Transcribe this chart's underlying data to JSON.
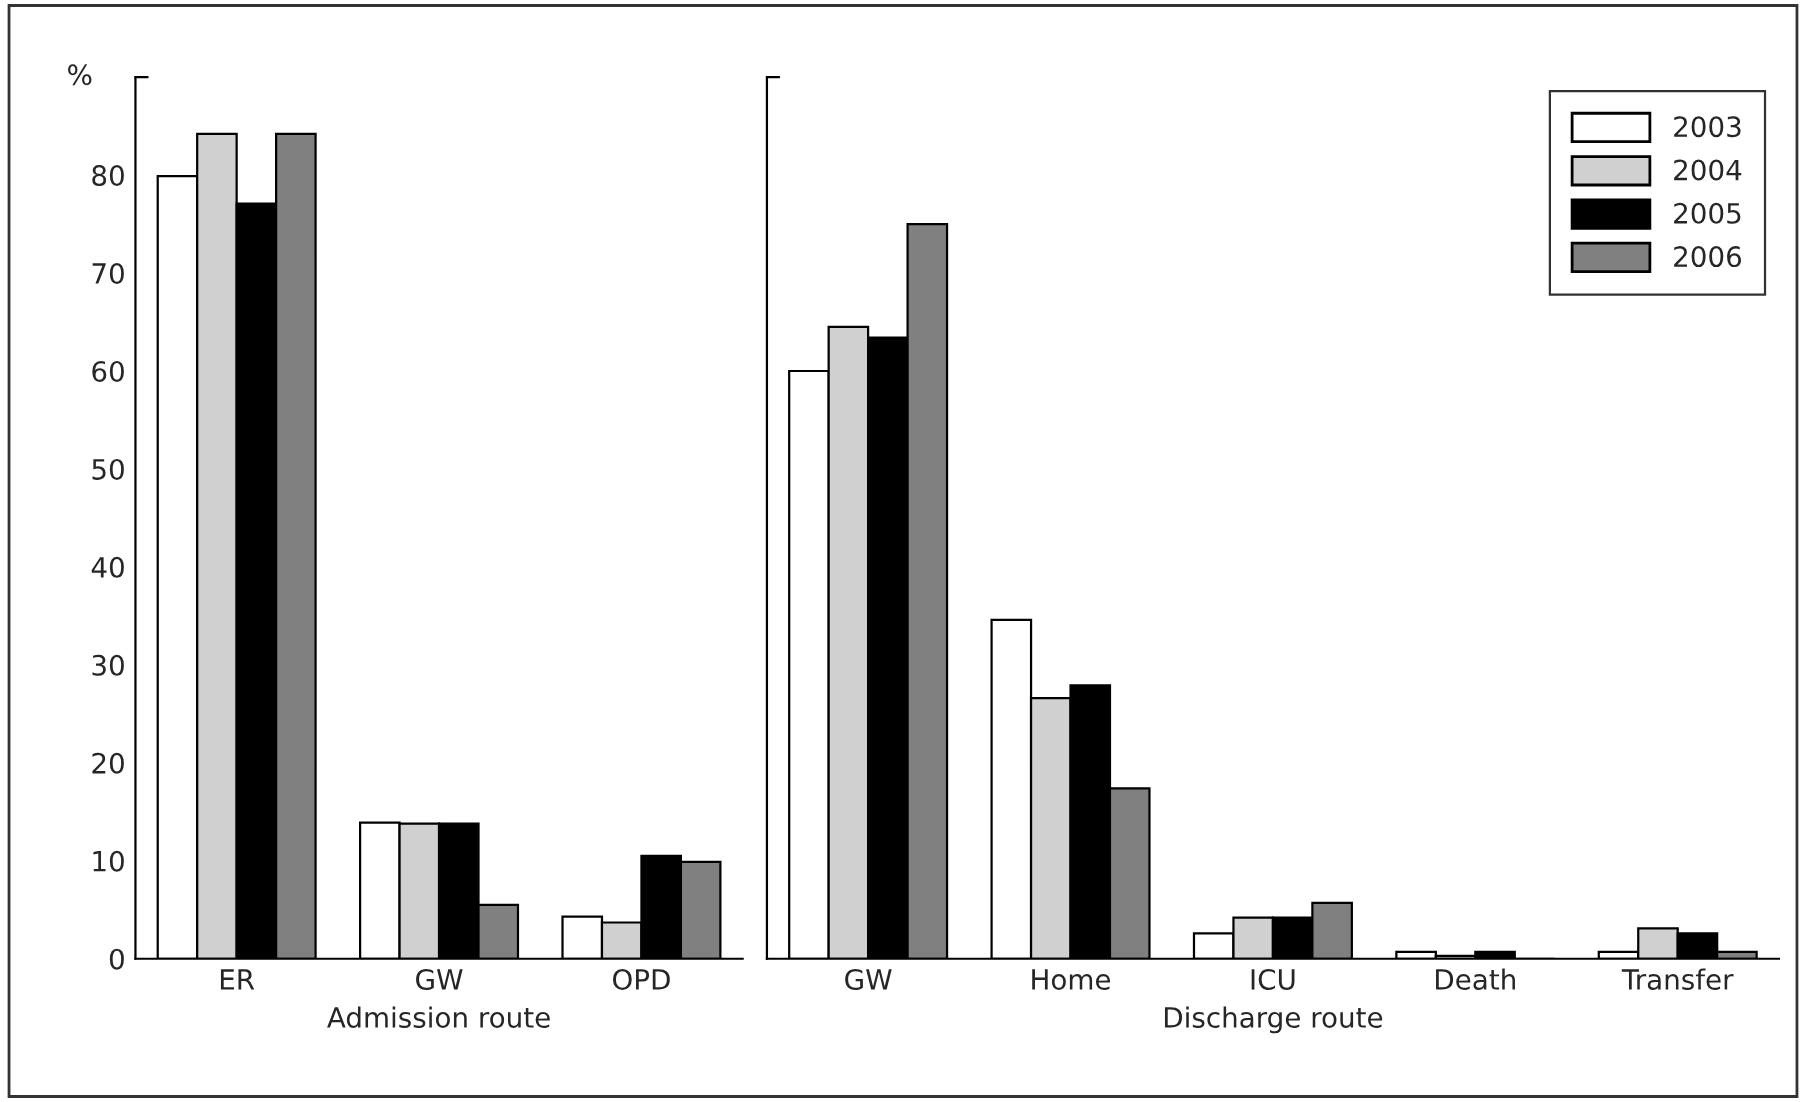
{
  "chart_data": [
    {
      "type": "bar",
      "xlabel": "Admission route",
      "ylabel": "%",
      "categories": [
        "ER",
        "GW",
        "OPD"
      ],
      "series": [
        {
          "color": "#ffffff",
          "values": [
            79.9,
            13.9,
            4.3
          ]
        },
        {
          "color": "#d0d0d0",
          "values": [
            84.2,
            13.8,
            3.7
          ]
        },
        {
          "color": "#000000",
          "values": [
            77.1,
            13.8,
            10.5
          ]
        },
        {
          "color": "#808080",
          "values": [
            84.2,
            5.5,
            9.9
          ]
        }
      ],
      "ylim": [
        0,
        90
      ],
      "yticks": [
        0,
        10,
        20,
        30,
        40,
        50,
        60,
        70,
        80,
        {
          "value": 90,
          "label": null
        }
      ],
      "legend": false,
      "grid": false
    },
    {
      "type": "bar",
      "xlabel": "Discharge route",
      "categories": [
        "GW",
        "Home",
        "ICU",
        "Death",
        "Transfer"
      ],
      "series": [
        {
          "name": "2003",
          "color": "#ffffff",
          "values": [
            60.0,
            34.6,
            2.6,
            0.7,
            0.7
          ]
        },
        {
          "name": "2004",
          "color": "#d0d0d0",
          "values": [
            64.5,
            26.6,
            4.2,
            0.3,
            3.1
          ]
        },
        {
          "name": "2005",
          "color": "#000000",
          "values": [
            63.4,
            27.9,
            4.2,
            0.7,
            2.6
          ]
        },
        {
          "name": "2006",
          "color": "#808080",
          "values": [
            75.0,
            17.4,
            5.7,
            0,
            0.7
          ]
        }
      ],
      "ylim": [
        0,
        90
      ],
      "yticks": [
        0,
        10,
        20,
        30,
        40,
        50,
        60,
        70,
        80,
        {
          "value": 90,
          "label": null
        }
      ],
      "tick_labels": "x",
      "legend": "top right",
      "grid": false
    }
  ]
}
